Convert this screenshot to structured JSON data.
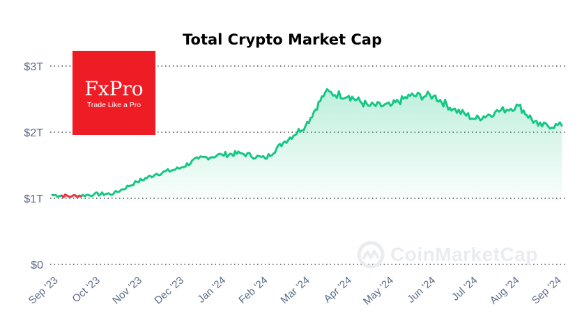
{
  "chart_data": {
    "type": "area",
    "title": "Total Crypto Market Cap",
    "unit": "USD trillions",
    "x": [
      "2023-09-01",
      "2023-09-15",
      "2023-10-01",
      "2023-10-15",
      "2023-11-01",
      "2023-11-15",
      "2023-12-01",
      "2023-12-15",
      "2024-01-01",
      "2024-01-15",
      "2024-02-01",
      "2024-02-15",
      "2024-03-01",
      "2024-03-15",
      "2024-04-01",
      "2024-04-15",
      "2024-05-01",
      "2024-05-15",
      "2024-06-01",
      "2024-06-15",
      "2024-07-01",
      "2024-07-15",
      "2024-08-01",
      "2024-08-15",
      "2024-09-01"
    ],
    "values": [
      1.05,
      1.03,
      1.06,
      1.07,
      1.25,
      1.37,
      1.45,
      1.6,
      1.66,
      1.68,
      1.6,
      1.86,
      2.1,
      2.6,
      2.55,
      2.4,
      2.4,
      2.55,
      2.55,
      2.35,
      2.2,
      2.3,
      2.4,
      2.1,
      2.1
    ],
    "declining_segment": {
      "from": "2023-09-08",
      "to": "2023-09-22",
      "color": "#ea3943"
    },
    "y_ticks": [
      {
        "v": 0,
        "label": "$0"
      },
      {
        "v": 1,
        "label": "$1T"
      },
      {
        "v": 2,
        "label": "$2T"
      },
      {
        "v": 3,
        "label": "$3T"
      }
    ],
    "x_ticks": [
      "Sep '23",
      "Oct '23",
      "Nov '23",
      "Dec '23",
      "Jan '24",
      "Feb '24",
      "Mar '24",
      "Apr '24",
      "May '24",
      "Jun '24",
      "Jul '24",
      "Aug '24",
      "Sep '24"
    ],
    "ylim": [
      0,
      3
    ],
    "colors": {
      "line": "#16c784",
      "down": "#ea3943",
      "grid": "#222222",
      "axis_text": "#5b6b86"
    }
  },
  "logo": {
    "name": "FxPro",
    "tagline": "Trade Like a Pro",
    "color": "#ee1c25"
  },
  "watermark": {
    "text": "CoinMarketCap"
  }
}
